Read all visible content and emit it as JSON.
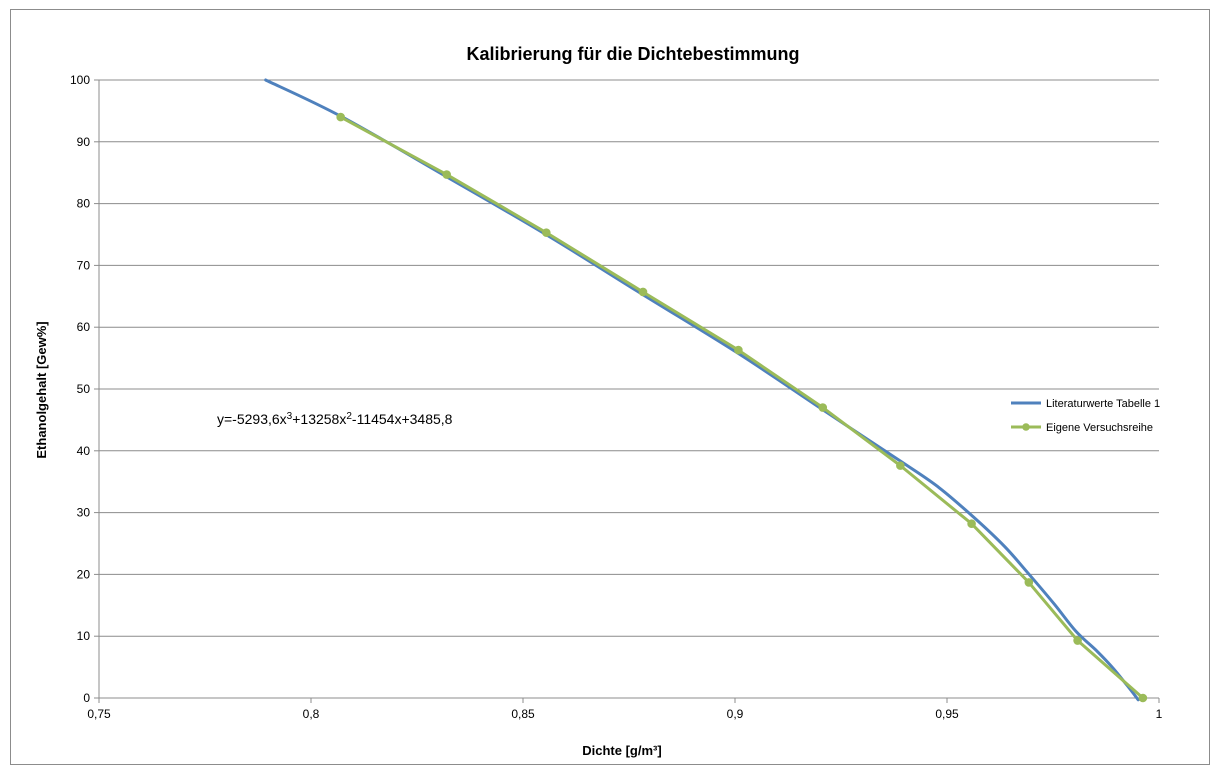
{
  "chart_data": {
    "type": "line",
    "title": "Kalibrierung für die Dichtebestimmung",
    "xlabel": "Dichte [g/m³]",
    "ylabel": "Ethanolgehalt [Gew%]",
    "xlim": [
      0.75,
      1.0
    ],
    "ylim": [
      0,
      100
    ],
    "x_ticks": [
      "0,75",
      "0,8",
      "0,85",
      "0,9",
      "0,95",
      "1"
    ],
    "y_ticks": [
      "0",
      "10",
      "20",
      "30",
      "40",
      "50",
      "60",
      "70",
      "80",
      "90",
      "100"
    ],
    "grid": "horizontal",
    "legend_position": "right",
    "annotation": {
      "parts": [
        {
          "text": "y=-5293,6x",
          "sup": false
        },
        {
          "text": "3",
          "sup": true
        },
        {
          "text": "+13258x",
          "sup": false
        },
        {
          "text": "2",
          "sup": true
        },
        {
          "text": "-11454x+3485,8",
          "sup": false
        }
      ]
    },
    "series": [
      {
        "name": "Literaturwerte Tabelle 1",
        "color": "#4f81bd",
        "markers": false,
        "x": [
          0.7893,
          0.8074,
          0.8321,
          0.8554,
          0.8782,
          0.9009,
          0.9208,
          0.9393,
          0.9482,
          0.9567,
          0.9636,
          0.969,
          0.9753,
          0.9804,
          0.9855,
          0.9892,
          0.9931,
          0.9951
        ],
        "y": [
          100,
          94.0,
          84.3,
          75.0,
          65.3,
          55.7,
          46.6,
          38.2,
          34.0,
          29.0,
          24.5,
          20.3,
          15.2,
          10.8,
          7.5,
          4.8,
          1.5,
          -0.3
        ]
      },
      {
        "name": "Eigene Versuchsreihe",
        "color": "#9bbb59",
        "markers": true,
        "x": [
          0.807,
          0.832,
          0.8555,
          0.8783,
          0.9008,
          0.9207,
          0.939,
          0.9558,
          0.9693,
          0.9808,
          0.9962
        ],
        "y": [
          94.0,
          84.7,
          75.3,
          65.7,
          56.3,
          47.0,
          37.6,
          28.2,
          18.7,
          9.3,
          0.0
        ]
      }
    ]
  }
}
